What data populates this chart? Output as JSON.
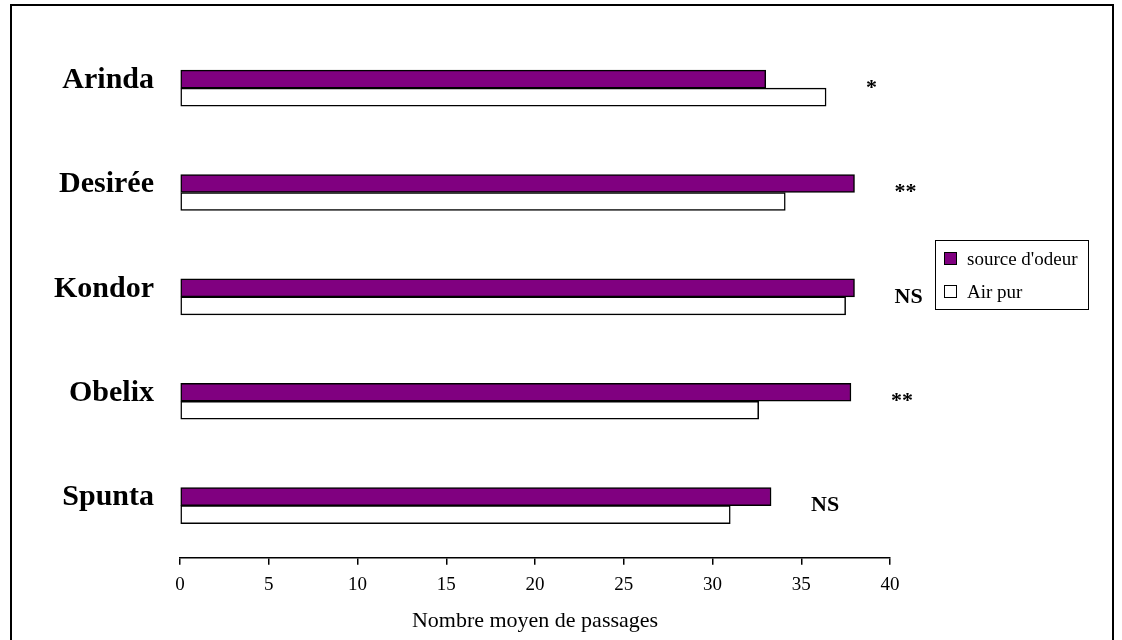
{
  "chart_data": {
    "type": "bar",
    "orientation": "horizontal",
    "categories": [
      "Arinda",
      "Desirée",
      "Kondor",
      "Obelix",
      "Spunta"
    ],
    "series": [
      {
        "name": "source d'odeur",
        "color": "#800080",
        "values": [
          33.0,
          38.0,
          38.0,
          37.8,
          33.3
        ]
      },
      {
        "name": "Air pur",
        "color": "#ffffff",
        "values": [
          36.4,
          34.1,
          37.5,
          32.6,
          31.0
        ]
      }
    ],
    "xlabel": "Nombre moyen de passages",
    "xlim": [
      0,
      40
    ],
    "xticks": [
      0,
      5,
      10,
      15,
      20,
      25,
      30,
      35,
      40
    ],
    "legend": "right",
    "annotations": [
      "*",
      "**",
      "NS",
      "**",
      "NS"
    ]
  }
}
